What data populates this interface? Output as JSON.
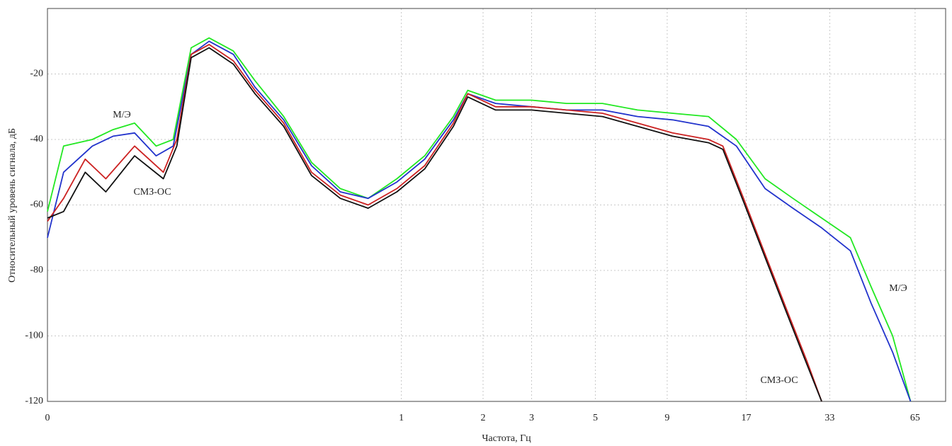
{
  "chart_data": {
    "type": "line",
    "xlabel": "Частота, Гц",
    "ylabel": "Относительный уровень сигнала, дБ",
    "xlim": [
      0,
      10
    ],
    "xticks": [
      0,
      {
        "value": 3.94,
        "label": "1"
      },
      {
        "value": 4.85,
        "label": "2"
      },
      {
        "value": 5.39,
        "label": "3"
      },
      {
        "value": 6.1,
        "label": "5"
      },
      {
        "value": 6.9,
        "label": "9"
      },
      {
        "value": 7.78,
        "label": "17"
      },
      {
        "value": 8.71,
        "label": "33"
      },
      {
        "value": 9.66,
        "label": "65"
      }
    ],
    "ylim": [
      -120,
      0
    ],
    "yticks": [
      -120,
      -100,
      -80,
      -60,
      -40,
      -20
    ],
    "grid": true,
    "series": [
      {
        "color": "#22e822",
        "x": [
          0,
          0.18,
          0.5,
          0.73,
          0.97,
          1.21,
          1.4,
          1.6,
          1.8,
          2.07,
          2.31,
          2.63,
          2.94,
          3.26,
          3.57,
          3.89,
          4.2,
          4.52,
          4.68,
          4.99,
          5.39,
          5.78,
          6.18,
          6.57,
          6.96,
          7.36,
          7.67,
          7.99,
          8.3,
          8.62,
          8.94,
          9.17,
          9.41,
          9.61
        ],
        "values": [
          -62,
          -42,
          -40,
          -37,
          -35,
          -42,
          -40,
          -12,
          -9,
          -13,
          -22,
          -33,
          -47,
          -55,
          -58,
          -52,
          -45,
          -33,
          -25,
          -28,
          -28,
          -29,
          -29,
          -31,
          -32,
          -33,
          -40,
          -52,
          -58,
          -64,
          -70,
          -85,
          -100,
          -120
        ]
      },
      {
        "color": "#2233cc",
        "x": [
          0,
          0.18,
          0.5,
          0.73,
          0.97,
          1.21,
          1.4,
          1.6,
          1.8,
          2.07,
          2.31,
          2.63,
          2.94,
          3.26,
          3.57,
          3.89,
          4.2,
          4.52,
          4.68,
          4.99,
          5.39,
          5.78,
          6.18,
          6.57,
          6.96,
          7.36,
          7.67,
          7.99,
          8.3,
          8.62,
          8.94,
          9.17,
          9.41,
          9.61
        ],
        "values": [
          -70,
          -50,
          -42,
          -39,
          -38,
          -45,
          -42,
          -14,
          -10,
          -14,
          -24,
          -34,
          -48,
          -56,
          -58,
          -53,
          -46,
          -34,
          -26,
          -29,
          -30,
          -31,
          -31,
          -33,
          -34,
          -36,
          -42,
          -55,
          -61,
          -67,
          -74,
          -90,
          -105,
          -120
        ]
      },
      {
        "color": "#cc2222",
        "x": [
          0,
          0.18,
          0.42,
          0.65,
          0.97,
          1.29,
          1.44,
          1.6,
          1.8,
          2.07,
          2.31,
          2.63,
          2.94,
          3.26,
          3.57,
          3.89,
          4.2,
          4.52,
          4.68,
          4.99,
          5.39,
          5.78,
          6.18,
          6.57,
          6.96,
          7.36,
          7.52,
          7.75,
          7.99,
          8.23,
          8.46,
          8.62
        ],
        "values": [
          -65,
          -58,
          -46,
          -52,
          -42,
          -50,
          -40,
          -14,
          -11,
          -16,
          -25,
          -35,
          -50,
          -57,
          -60,
          -55,
          -48,
          -35,
          -26,
          -30,
          -30,
          -31,
          -32,
          -35,
          -38,
          -40,
          -42,
          -58,
          -75,
          -92,
          -108,
          -120
        ]
      },
      {
        "color": "#111111",
        "x": [
          0,
          0.18,
          0.42,
          0.65,
          0.97,
          1.29,
          1.44,
          1.6,
          1.8,
          2.07,
          2.31,
          2.63,
          2.94,
          3.26,
          3.57,
          3.89,
          4.2,
          4.52,
          4.68,
          4.99,
          5.39,
          5.78,
          6.18,
          6.57,
          6.96,
          7.36,
          7.52,
          7.75,
          7.99,
          8.23,
          8.46,
          8.62
        ],
        "values": [
          -64,
          -62,
          -50,
          -56,
          -45,
          -52,
          -42,
          -15,
          -12,
          -17,
          -26,
          -36,
          -51,
          -58,
          -61,
          -56,
          -49,
          -36,
          -27,
          -31,
          -31,
          -32,
          -33,
          -36,
          -39,
          -41,
          -43,
          -59,
          -76,
          -93,
          -109,
          -120
        ]
      }
    ],
    "annotations": [
      "М/Э",
      "СМЗ-ОС",
      "М/Э",
      "СМЗ-ОС"
    ]
  }
}
